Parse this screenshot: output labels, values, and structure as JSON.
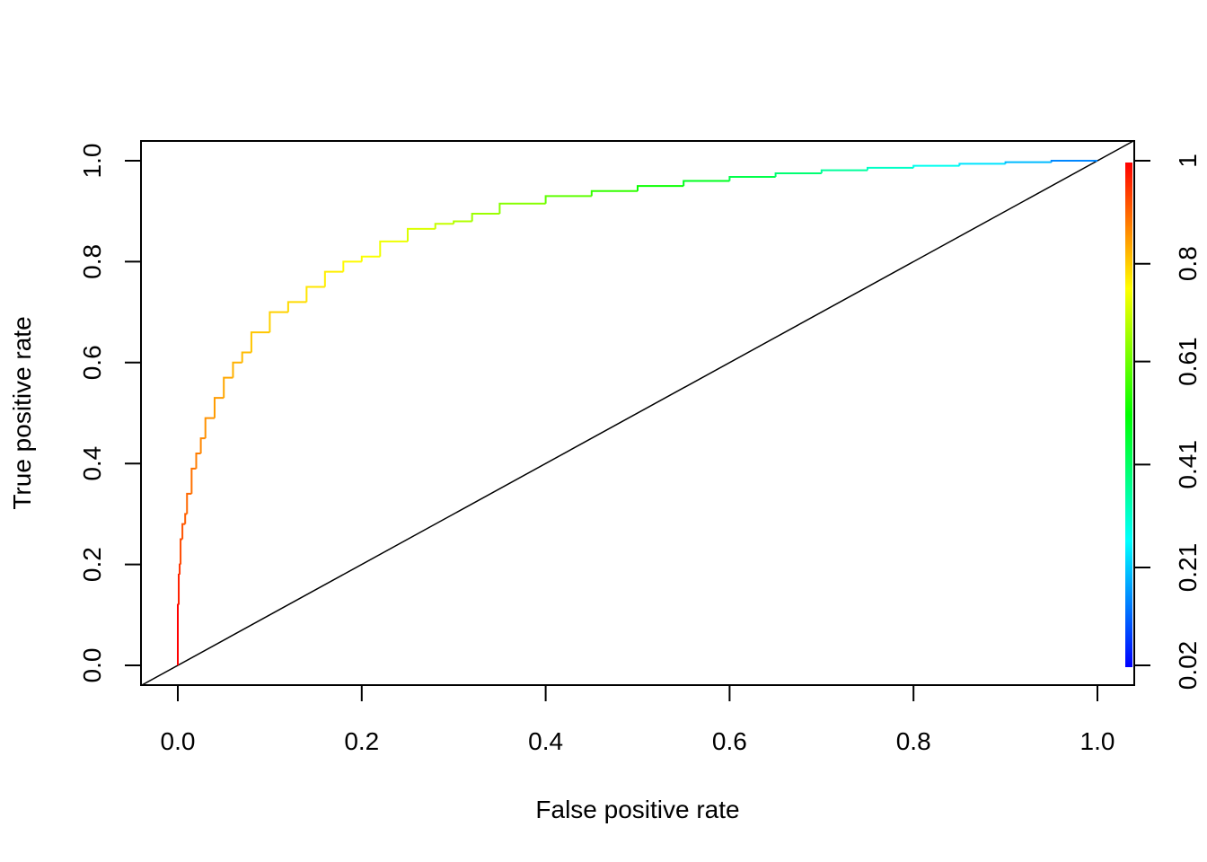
{
  "chart_data": {
    "type": "line",
    "title": "",
    "xlabel": "False positive rate",
    "ylabel": "True positive rate",
    "xlim": [
      0,
      1
    ],
    "ylim": [
      0,
      1
    ],
    "x_ticks": [
      0.0,
      0.2,
      0.4,
      0.6,
      0.8,
      1.0
    ],
    "x_tick_labels": [
      "0.0",
      "0.2",
      "0.4",
      "0.6",
      "0.8",
      "1.0"
    ],
    "y_ticks": [
      0.0,
      0.2,
      0.4,
      0.6,
      0.8,
      1.0
    ],
    "y_tick_labels": [
      "0.0",
      "0.2",
      "0.4",
      "0.6",
      "0.8",
      "1.0"
    ],
    "grid": false,
    "series": [
      {
        "x": [
          0,
          0.001,
          0.002,
          0.003,
          0.005,
          0.008,
          0.01,
          0.015,
          0.02,
          0.025,
          0.03,
          0.04,
          0.05,
          0.06,
          0.07,
          0.08,
          0.1,
          0.12,
          0.14,
          0.16,
          0.18,
          0.2,
          0.22,
          0.25,
          0.28,
          0.3,
          0.32,
          0.35,
          0.4,
          0.45,
          0.5,
          0.55,
          0.6,
          0.65,
          0.7,
          0.75,
          0.8,
          0.85,
          0.9,
          0.95,
          1.0
        ],
        "y": [
          0,
          0.12,
          0.18,
          0.2,
          0.25,
          0.28,
          0.3,
          0.34,
          0.39,
          0.42,
          0.45,
          0.49,
          0.53,
          0.57,
          0.6,
          0.62,
          0.66,
          0.7,
          0.72,
          0.75,
          0.78,
          0.8,
          0.81,
          0.84,
          0.865,
          0.875,
          0.88,
          0.895,
          0.915,
          0.93,
          0.94,
          0.95,
          0.96,
          0.968,
          0.975,
          0.981,
          0.986,
          0.99,
          0.994,
          0.997,
          1.0
        ],
        "cutoffs": [
          1.0,
          0.97,
          0.95,
          0.93,
          0.92,
          0.91,
          0.9,
          0.89,
          0.88,
          0.87,
          0.86,
          0.85,
          0.84,
          0.83,
          0.82,
          0.81,
          0.8,
          0.79,
          0.78,
          0.77,
          0.76,
          0.75,
          0.74,
          0.72,
          0.7,
          0.68,
          0.66,
          0.64,
          0.6,
          0.56,
          0.52,
          0.48,
          0.44,
          0.4,
          0.36,
          0.32,
          0.28,
          0.24,
          0.2,
          0.15,
          0.1
        ]
      }
    ],
    "reference_line": {
      "x": [
        0,
        1
      ],
      "y": [
        0,
        1
      ]
    },
    "colorbar": {
      "range": [
        0.02,
        1.0
      ],
      "tick_values": [
        0.02,
        0.21,
        0.41,
        0.61,
        0.8,
        1.0
      ],
      "tick_labels": [
        "0.02",
        "0.21",
        "0.41",
        "0.61",
        "0.8",
        "1"
      ],
      "color_stops": [
        "#0000ff",
        "#00ffff",
        "#00ff00",
        "#ffff00",
        "#ff0000"
      ]
    }
  }
}
